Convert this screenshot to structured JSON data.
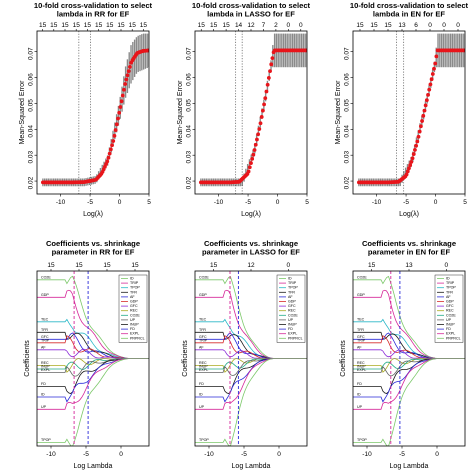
{
  "chart_data": [
    {
      "type": "line",
      "panel": "cv-rr",
      "title_lines": [
        "10-fold cross-validation to select",
        "lambda in RR for EF"
      ],
      "xlabel": "Log(λ)",
      "ylabel": "Mean-Squared Error",
      "xlim": [
        -14,
        5
      ],
      "ylim": [
        0.015,
        0.078
      ],
      "x_ticks": [
        -10,
        -5,
        0,
        5
      ],
      "x_tick_labels": [
        "-10",
        "-5",
        "0",
        "5"
      ],
      "y_ticks": [
        0.02,
        0.03,
        0.04,
        0.05,
        0.06,
        0.07
      ],
      "y_tick_labels": [
        "0.02",
        "0.03",
        "0.04",
        "0.05",
        "0.06",
        "0.07"
      ],
      "top_tick_labels": [
        "15",
        "15",
        "15",
        "15",
        "15",
        "15",
        "15",
        "15",
        "15",
        "15"
      ],
      "vlines": [
        -6.9,
        -4.9
      ],
      "curve": {
        "x": [
          -13,
          -8,
          -6,
          -4,
          -3,
          -2,
          -1,
          0,
          1,
          2,
          3,
          4,
          5
        ],
        "y": [
          0.0195,
          0.0195,
          0.0196,
          0.0205,
          0.023,
          0.028,
          0.036,
          0.047,
          0.058,
          0.066,
          0.0695,
          0.0703,
          0.0705
        ]
      },
      "band": {
        "x": [
          -13,
          -6,
          -4,
          -2,
          0,
          1,
          2,
          3,
          4,
          5
        ],
        "upper": [
          0.021,
          0.021,
          0.022,
          0.03,
          0.051,
          0.064,
          0.073,
          0.076,
          0.077,
          0.077
        ],
        "lower": [
          0.018,
          0.018,
          0.019,
          0.026,
          0.043,
          0.052,
          0.058,
          0.062,
          0.063,
          0.064
        ]
      }
    },
    {
      "type": "line",
      "panel": "cv-lasso",
      "title_lines": [
        "10-fold cross-validation to select",
        "lambda in LASSO for EF"
      ],
      "xlabel": "Log(λ)",
      "ylabel": "Mean-Squared Error",
      "xlim": [
        -14,
        5
      ],
      "ylim": [
        0.015,
        0.078
      ],
      "x_ticks": [
        -10,
        -5,
        0,
        5
      ],
      "x_tick_labels": [
        "-10",
        "-5",
        "0",
        "5"
      ],
      "y_ticks": [
        0.02,
        0.03,
        0.04,
        0.05,
        0.06,
        0.07
      ],
      "y_tick_labels": [
        "0.02",
        "0.03",
        "0.04",
        "0.05",
        "0.06",
        "0.07"
      ],
      "top_tick_labels": [
        "15",
        "15",
        "15",
        "14",
        "12",
        "7",
        "2",
        "0",
        "0"
      ],
      "vlines": [
        -7.1,
        -6.0
      ],
      "curve": {
        "x": [
          -13,
          -8,
          -6.5,
          -5,
          -4,
          -3,
          -2,
          -1,
          -0.6,
          0,
          2,
          4,
          5
        ],
        "y": [
          0.0195,
          0.0195,
          0.0197,
          0.023,
          0.031,
          0.041,
          0.053,
          0.066,
          0.0705,
          0.0705,
          0.0705,
          0.0705,
          0.0705
        ]
      },
      "band": {
        "x": [
          -13,
          -6,
          -4,
          -2,
          -1,
          -0.6,
          5
        ],
        "upper": [
          0.021,
          0.021,
          0.033,
          0.055,
          0.068,
          0.077,
          0.077
        ],
        "lower": [
          0.018,
          0.018,
          0.029,
          0.051,
          0.064,
          0.064,
          0.064
        ]
      }
    },
    {
      "type": "line",
      "panel": "cv-en",
      "title_lines": [
        "10-fold cross-validation to select",
        "lambda in EN for EF"
      ],
      "xlabel": "Log(λ)",
      "ylabel": "Mean-Squared Error",
      "xlim": [
        -14,
        5
      ],
      "ylim": [
        0.015,
        0.078
      ],
      "x_ticks": [
        -10,
        -5,
        0,
        5
      ],
      "x_tick_labels": [
        "-10",
        "-5",
        "0",
        "5"
      ],
      "y_ticks": [
        0.02,
        0.03,
        0.04,
        0.05,
        0.06,
        0.07
      ],
      "y_tick_labels": [
        "0.02",
        "0.03",
        "0.04",
        "0.05",
        "0.06",
        "0.07"
      ],
      "top_tick_labels": [
        "15",
        "15",
        "15",
        "13",
        "6",
        "0",
        "0",
        "0"
      ],
      "vlines": [
        -6.6,
        -5.4
      ],
      "curve": {
        "x": [
          -13,
          -8,
          -6.3,
          -5,
          -4,
          -3,
          -2,
          -1,
          0,
          0.3,
          2,
          4,
          5
        ],
        "y": [
          0.0195,
          0.0195,
          0.0197,
          0.022,
          0.028,
          0.036,
          0.046,
          0.056,
          0.066,
          0.0705,
          0.0705,
          0.0705,
          0.0705
        ]
      },
      "band": {
        "x": [
          -13,
          -6,
          -4,
          -2,
          0,
          0.3,
          5
        ],
        "upper": [
          0.021,
          0.021,
          0.03,
          0.048,
          0.068,
          0.077,
          0.077
        ],
        "lower": [
          0.018,
          0.018,
          0.026,
          0.044,
          0.064,
          0.064,
          0.064
        ]
      }
    },
    {
      "type": "line",
      "panel": "coef-rr",
      "title_lines": [
        "Coefficients vs. shrinkage",
        "parameter in RR for EF"
      ],
      "xlabel": "Log Lambda",
      "ylabel": "Coefficients",
      "xlim": [
        -12,
        4
      ],
      "ylim": [
        -1.0,
        1.0
      ],
      "x_ticks": [
        -10,
        -5,
        0
      ],
      "x_tick_labels": [
        "-10",
        "-5",
        "0"
      ],
      "y_ticks": [],
      "top_tick_labels": [
        "15",
        "15",
        "15",
        "15"
      ],
      "vlines": [
        -6.7,
        -4.7
      ],
      "vline_colors": [
        "#d6279a",
        "#2a2ad8"
      ],
      "legend": [
        "ID",
        "TRIP",
        "TPOP",
        "TFR",
        "AF",
        "GDP",
        "GFC",
        "REC",
        "CO2E",
        "UP",
        "INUP",
        "FD",
        "EXPL",
        "PRPRCL"
      ],
      "series": [
        {
          "name": "CO2E",
          "color": "#7cc86a",
          "start": 0.9
        },
        {
          "name": "GDP",
          "color": "#d62a9a",
          "start": 0.7
        },
        {
          "name": "TEC",
          "color": "#2ab8c8",
          "start": 0.42
        },
        {
          "name": "TFR",
          "color": "#1a1a1a",
          "start": 0.3
        },
        {
          "name": "GFC",
          "color": "#2a2ad8",
          "start": 0.22
        },
        {
          "name": "TRIP",
          "color": "#d62a2a",
          "start": 0.18
        },
        {
          "name": "AF",
          "color": "#8a2ad8",
          "start": 0.1
        },
        {
          "name": "REC",
          "color": "#aaaa22",
          "start": -0.08
        },
        {
          "name": "INUP",
          "color": "#22aa88",
          "start": -0.12
        },
        {
          "name": "EXPL",
          "color": "#666666",
          "start": -0.16
        },
        {
          "name": "FD",
          "color": "#1a1a1a",
          "start": -0.32
        },
        {
          "name": "ID",
          "color": "#2a2ad8",
          "start": -0.44
        },
        {
          "name": "UP",
          "color": "#d62a9a",
          "start": -0.58
        },
        {
          "name": "TPOP",
          "color": "#7cc86a",
          "start": -0.96
        }
      ]
    },
    {
      "type": "line",
      "panel": "coef-lasso",
      "title_lines": [
        "Coefficients vs. shrinkage",
        "parameter in LASSO for EF"
      ],
      "xlabel": "Log Lambda",
      "ylabel": "Coefficients",
      "xlim": [
        -12,
        4
      ],
      "ylim": [
        -1.0,
        1.0
      ],
      "x_ticks": [
        -10,
        -5,
        0
      ],
      "x_tick_labels": [
        "-10",
        "-5",
        "0"
      ],
      "y_ticks": [],
      "top_tick_labels": [
        "15",
        "12",
        "0"
      ],
      "vlines": [
        -7.0,
        -5.8
      ],
      "vline_colors": [
        "#d6279a",
        "#2a2ad8"
      ],
      "legend": [
        "ID",
        "TRIP",
        "TPOP",
        "TFR",
        "AF",
        "GDP",
        "GFC",
        "REC",
        "CO2E",
        "UP",
        "INUP",
        "FD",
        "EXPL",
        "PRPRCL"
      ],
      "series": [
        {
          "name": "CO2E",
          "color": "#7cc86a",
          "start": 0.9
        },
        {
          "name": "GDP",
          "color": "#d62a9a",
          "start": 0.7
        },
        {
          "name": "TEC",
          "color": "#2ab8c8",
          "start": 0.42
        },
        {
          "name": "TFR",
          "color": "#1a1a1a",
          "start": 0.3
        },
        {
          "name": "GFC",
          "color": "#2a2ad8",
          "start": 0.22
        },
        {
          "name": "TRIP",
          "color": "#d62a2a",
          "start": 0.18
        },
        {
          "name": "AF",
          "color": "#8a2ad8",
          "start": 0.1
        },
        {
          "name": "REC",
          "color": "#aaaa22",
          "start": -0.08
        },
        {
          "name": "INUP",
          "color": "#22aa88",
          "start": -0.12
        },
        {
          "name": "EXPL",
          "color": "#666666",
          "start": -0.16
        },
        {
          "name": "FD",
          "color": "#1a1a1a",
          "start": -0.32
        },
        {
          "name": "ID",
          "color": "#2a2ad8",
          "start": -0.44
        },
        {
          "name": "UP",
          "color": "#d62a9a",
          "start": -0.58
        },
        {
          "name": "TPOP",
          "color": "#7cc86a",
          "start": -0.96
        }
      ]
    },
    {
      "type": "line",
      "panel": "coef-en",
      "title_lines": [
        "Coefficients vs. shrinkage",
        "parameter in EN for EF"
      ],
      "xlabel": "Log Lambda",
      "ylabel": "Coefficients",
      "xlim": [
        -12,
        4
      ],
      "ylim": [
        -1.0,
        1.0
      ],
      "x_ticks": [
        -10,
        -5,
        0
      ],
      "x_tick_labels": [
        "-10",
        "-5",
        "0"
      ],
      "y_ticks": [],
      "top_tick_labels": [
        "15",
        "13",
        "0"
      ],
      "vlines": [
        -6.6,
        -5.3
      ],
      "vline_colors": [
        "#d6279a",
        "#2a2ad8"
      ],
      "legend": [
        "ID",
        "TRIP",
        "TPOP",
        "TFR",
        "AF",
        "GDP",
        "GFC",
        "REC",
        "CO2E",
        "UP",
        "INUP",
        "FD",
        "EXPL",
        "PRPRCL"
      ],
      "series": [
        {
          "name": "CO2E",
          "color": "#7cc86a",
          "start": 0.9
        },
        {
          "name": "GDP",
          "color": "#d62a9a",
          "start": 0.7
        },
        {
          "name": "TEC",
          "color": "#2ab8c8",
          "start": 0.42
        },
        {
          "name": "TFR",
          "color": "#1a1a1a",
          "start": 0.3
        },
        {
          "name": "GFC",
          "color": "#2a2ad8",
          "start": 0.22
        },
        {
          "name": "TRIP",
          "color": "#d62a2a",
          "start": 0.18
        },
        {
          "name": "AF",
          "color": "#8a2ad8",
          "start": 0.1
        },
        {
          "name": "REC",
          "color": "#aaaa22",
          "start": -0.08
        },
        {
          "name": "INUP",
          "color": "#22aa88",
          "start": -0.12
        },
        {
          "name": "EXPL",
          "color": "#666666",
          "start": -0.16
        },
        {
          "name": "FD",
          "color": "#1a1a1a",
          "start": -0.32
        },
        {
          "name": "ID",
          "color": "#2a2ad8",
          "start": -0.44
        },
        {
          "name": "UP",
          "color": "#d62a9a",
          "start": -0.58
        },
        {
          "name": "TPOP",
          "color": "#7cc86a",
          "start": -0.96
        }
      ]
    }
  ]
}
